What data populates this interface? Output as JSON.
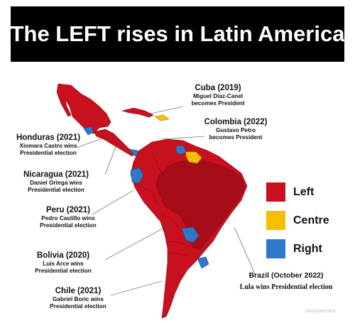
{
  "title": "The LEFT rises in Latin America",
  "colors": {
    "left": "#c8101f",
    "left_dark": "#a60d19",
    "centre": "#f6c000",
    "right": "#2f77c9",
    "title_bg": "#000000",
    "sea": "#ffffff"
  },
  "legend": [
    {
      "label": "Left",
      "color": "#c8101f"
    },
    {
      "label": "Centre",
      "color": "#f6c000"
    },
    {
      "label": "Right",
      "color": "#2f77c9"
    }
  ],
  "annotations": {
    "cuba": {
      "country": "Cuba (2019)",
      "lines": [
        "Miguel Díaz-Canel",
        "becomes President"
      ]
    },
    "colombia": {
      "country": "Colombia (2022)",
      "lines": [
        "Gustavo Petro",
        "becomes President"
      ]
    },
    "honduras": {
      "country": "Honduras (2021)",
      "lines": [
        "Xiomara Castro wins",
        "Presidential election"
      ]
    },
    "nicaragua": {
      "country": "Nicaragua (2021)",
      "lines": [
        "Daniel Ortega wins",
        "Presidential election"
      ]
    },
    "peru": {
      "country": "Peru (2021)",
      "lines": [
        "Pedro Castillo wins",
        "Presidential election"
      ]
    },
    "bolivia": {
      "country": "Bolivia (2020)",
      "lines": [
        "Luis Arce wins",
        "Presidential election"
      ]
    },
    "chile": {
      "country": "Chile (2021)",
      "lines": [
        "Gabriel Boric wins",
        "Presidential election"
      ]
    },
    "brazil": {
      "country": "Brazil (October 2022)",
      "lines": [
        "Lula wins Presidential election"
      ]
    }
  },
  "watermark": "dailyspectator"
}
